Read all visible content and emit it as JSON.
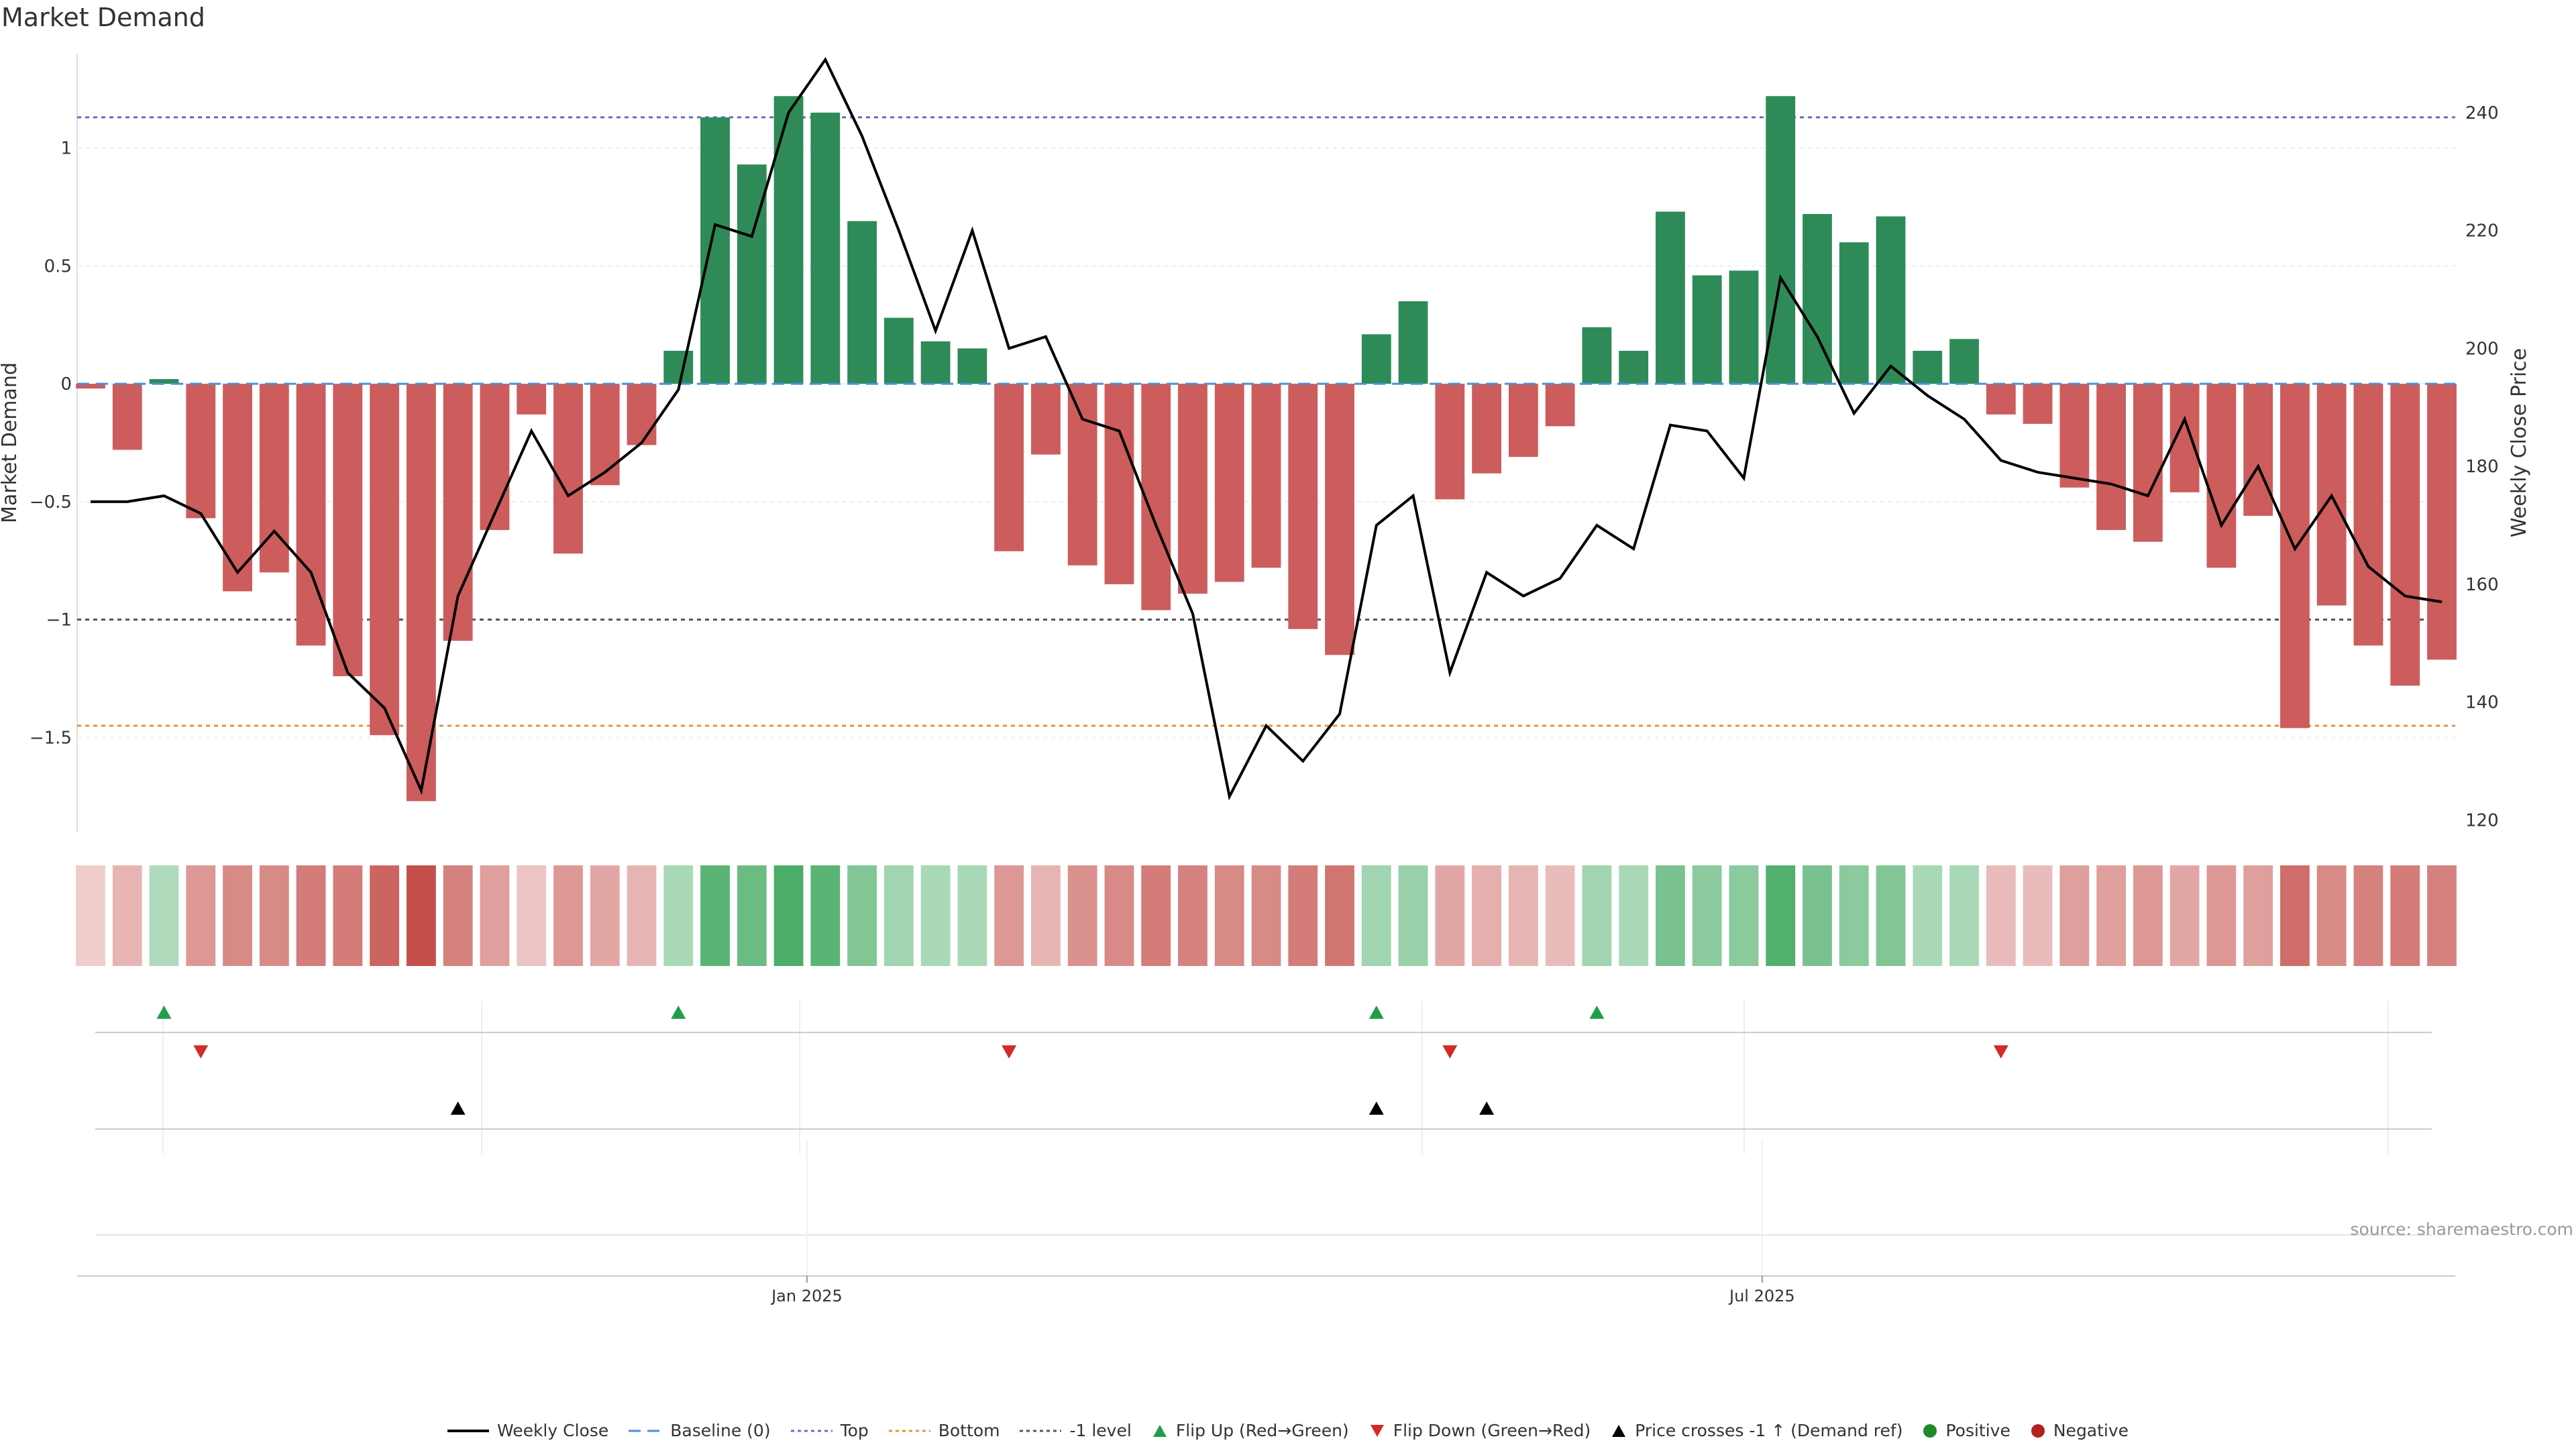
{
  "chart_data": {
    "type": "bar",
    "title": "Market Demand",
    "ylabel": "Market Demand",
    "y2label": "Weekly Close Price",
    "ylim": [
      -1.9,
      1.4
    ],
    "y2lim": [
      118,
      250
    ],
    "yticks": [
      1,
      0.5,
      0,
      -0.5,
      -1,
      -1.5
    ],
    "ytick_labels": [
      "1",
      "0.5",
      "0",
      "−0.5",
      "−1",
      "−1.5"
    ],
    "y2ticks": [
      240,
      220,
      200,
      180,
      160,
      140,
      120
    ],
    "xtick_labels": [
      {
        "index": 19.5,
        "label": "Jan 2025"
      },
      {
        "index": 45.5,
        "label": "Jul 2025"
      }
    ],
    "reference_lines": {
      "top": 1.13,
      "bottom": -1.45,
      "minus_one": -1.0,
      "baseline": 0
    },
    "series": [
      {
        "name": "Market Demand",
        "values": [
          -0.02,
          -0.28,
          0.02,
          -0.57,
          -0.88,
          -0.8,
          -1.11,
          -1.24,
          -1.49,
          -1.77,
          -1.09,
          -0.62,
          -0.13,
          -0.72,
          -0.43,
          -0.26,
          0.14,
          1.13,
          0.93,
          1.22,
          1.15,
          0.69,
          0.28,
          0.18,
          0.15,
          -0.71,
          -0.3,
          -0.77,
          -0.85,
          -0.96,
          -0.89,
          -0.84,
          -0.78,
          -1.04,
          -1.15,
          0.21,
          0.35,
          -0.49,
          -0.38,
          -0.31,
          -0.18,
          0.24,
          0.14,
          0.73,
          0.46,
          0.48,
          1.22,
          0.72,
          0.6,
          0.71,
          0.14,
          0.19,
          -0.13,
          -0.17,
          -0.44,
          -0.62,
          -0.67,
          -0.46,
          -0.78,
          -0.56,
          -1.46,
          -0.94,
          -1.11,
          -1.28,
          -1.17
        ]
      },
      {
        "name": "Weekly Close",
        "values": [
          174,
          174,
          175,
          172,
          162,
          169,
          162,
          145,
          139,
          125,
          158,
          172,
          186,
          175,
          179,
          184,
          193,
          221,
          219,
          240,
          249,
          236,
          220,
          203,
          220,
          200,
          202,
          188,
          186,
          170,
          155,
          124,
          136,
          130,
          138,
          170,
          175,
          145,
          162,
          158,
          161,
          170,
          166,
          187,
          186,
          178,
          212,
          202,
          189,
          197,
          192,
          188,
          181,
          179,
          178,
          177,
          175,
          188,
          170,
          180,
          166,
          175,
          163,
          158,
          157
        ]
      }
    ],
    "heat_row": [
      -0.15,
      -0.3,
      0.3,
      -0.5,
      -0.6,
      -0.6,
      -0.7,
      -0.7,
      -0.85,
      -1.0,
      -0.65,
      -0.45,
      -0.2,
      -0.5,
      -0.4,
      -0.3,
      0.35,
      0.85,
      0.75,
      0.95,
      0.85,
      0.6,
      0.4,
      0.35,
      0.35,
      -0.5,
      -0.3,
      -0.55,
      -0.6,
      -0.7,
      -0.65,
      -0.6,
      -0.6,
      -0.7,
      -0.75,
      0.4,
      0.45,
      -0.4,
      -0.35,
      -0.3,
      -0.25,
      0.4,
      0.35,
      0.65,
      0.55,
      0.55,
      0.9,
      0.65,
      0.55,
      0.6,
      0.35,
      0.35,
      -0.25,
      -0.25,
      -0.45,
      -0.45,
      -0.5,
      -0.4,
      -0.5,
      -0.45,
      -0.8,
      -0.6,
      -0.65,
      -0.7,
      -0.65
    ],
    "flip_up_indices": [
      2,
      16,
      35,
      41
    ],
    "flip_down_indices": [
      3,
      25,
      37,
      52
    ],
    "price_cross_indices": [
      10,
      35,
      38
    ],
    "legend": [
      "Weekly Close",
      "Baseline (0)",
      "Top",
      "Bottom",
      "-1 level",
      "Flip Up (Red→Green)",
      "Flip Down (Green→Red)",
      "Price crosses -1 ↑ (Demand ref)",
      "Positive",
      "Negative"
    ],
    "colors": {
      "positive": "#2e8b57",
      "negative": "#cd5c5c",
      "line": "#000000",
      "top": "#6a6ac8",
      "bottom": "#e8913a",
      "minus_one": "#555555",
      "baseline": "#4a90d9",
      "flip_up": "#1f9e4a",
      "flip_down": "#d42a2a",
      "cross": "#000000",
      "pos_dot": "#1f8a2a",
      "neg_dot": "#b22222"
    }
  },
  "source_text": "source: sharemaestro.com"
}
